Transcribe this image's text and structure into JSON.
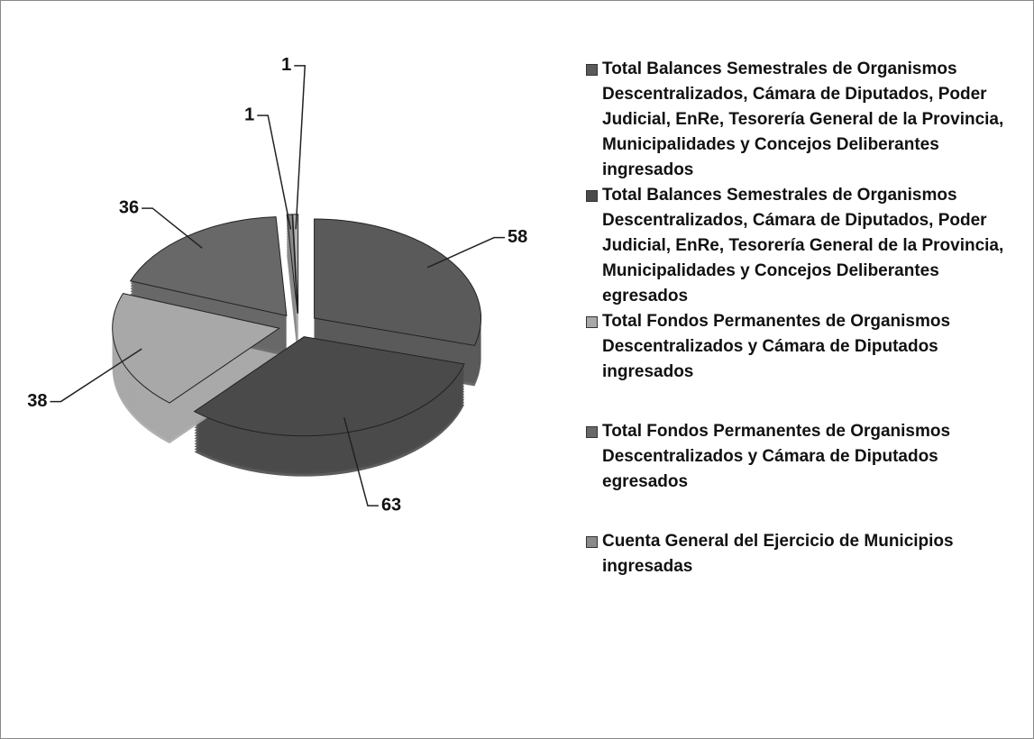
{
  "chart_data": {
    "type": "pie",
    "categories": [
      "Total Balances Semestrales de Organismos Descentralizados, Cámara de Diputados, Poder Judicial, EnRe, Tesorería General de la Provincia, Municipalidades y Concejos Deliberantes ingresados",
      "Total Balances Semestrales de Organismos Descentralizados, Cámara de Diputados, Poder Judicial, EnRe, Tesorería General de la Provincia, Municipalidades y Concejos Deliberantes egresados",
      "Total Fondos Permanentes de Organismos Descentralizados y Cámara de Diputados ingresados",
      "Total Fondos Permanentes de Organismos Descentralizados y Cámara de Diputados egresados",
      "Cuenta General del Ejercicio de Municipios ingresadas",
      null
    ],
    "values": [
      58,
      63,
      38,
      36,
      1,
      1
    ],
    "colors": [
      "#5a5a5a",
      "#4a4a4a",
      "#a8a8a8",
      "#686868",
      "#8a8a8a",
      "#b0b0b0"
    ]
  }
}
